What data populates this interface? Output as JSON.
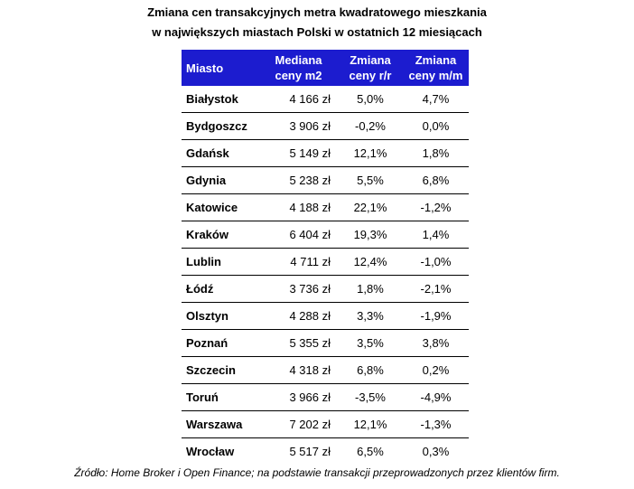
{
  "title_line1": "Zmiana cen transakcyjnych metra kwadratowego mieszkania",
  "title_line2": "w największych miastach Polski w ostatnich 12 miesiącach",
  "header": {
    "city": "Miasto",
    "median_1": "Mediana",
    "median_2": "ceny m2",
    "yoy_1": "Zmiana",
    "yoy_2": "ceny r/r",
    "mom_1": "Zmiana",
    "mom_2": "ceny m/m"
  },
  "header_color": "#1c1ccf",
  "rows": [
    {
      "city": "Białystok",
      "price": "4 166 zł",
      "yoy": "5,0%",
      "mom": "4,7%"
    },
    {
      "city": "Bydgoszcz",
      "price": "3 906 zł",
      "yoy": "-0,2%",
      "mom": "0,0%"
    },
    {
      "city": "Gdańsk",
      "price": "5 149 zł",
      "yoy": "12,1%",
      "mom": "1,8%"
    },
    {
      "city": "Gdynia",
      "price": "5 238 zł",
      "yoy": "5,5%",
      "mom": "6,8%"
    },
    {
      "city": "Katowice",
      "price": "4 188 zł",
      "yoy": "22,1%",
      "mom": "-1,2%"
    },
    {
      "city": "Kraków",
      "price": "6 404 zł",
      "yoy": "19,3%",
      "mom": "1,4%"
    },
    {
      "city": "Lublin",
      "price": "4 711 zł",
      "yoy": "12,4%",
      "mom": "-1,0%"
    },
    {
      "city": "Łódź",
      "price": "3 736 zł",
      "yoy": "1,8%",
      "mom": "-2,1%"
    },
    {
      "city": "Olsztyn",
      "price": "4 288 zł",
      "yoy": "3,3%",
      "mom": "-1,9%"
    },
    {
      "city": "Poznań",
      "price": "5 355 zł",
      "yoy": "3,5%",
      "mom": "3,8%"
    },
    {
      "city": "Szczecin",
      "price": "4 318 zł",
      "yoy": "6,8%",
      "mom": "0,2%"
    },
    {
      "city": "Toruń",
      "price": "3 966 zł",
      "yoy": "-3,5%",
      "mom": "-4,9%"
    },
    {
      "city": "Warszawa",
      "price": "7 202 zł",
      "yoy": "12,1%",
      "mom": "-1,3%"
    },
    {
      "city": "Wrocław",
      "price": "5 517 zł",
      "yoy": "6,5%",
      "mom": "0,3%"
    }
  ],
  "source": "Źródło: Home Broker i Open Finance; na podstawie transakcji przeprowadzonych przez klientów firm."
}
